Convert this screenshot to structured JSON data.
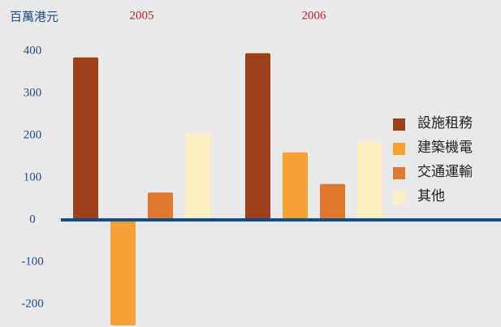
{
  "chart_data": {
    "type": "bar",
    "y_label": "百萬港元",
    "categories": [
      "2005",
      "2006"
    ],
    "series": [
      {
        "name": "設施租務",
        "color": "#9c4019",
        "values": [
          385,
          395
        ]
      },
      {
        "name": "建築機電",
        "color": "#f7a034",
        "values": [
          -250,
          160
        ]
      },
      {
        "name": "交通運輸",
        "color": "#e07830",
        "values": [
          65,
          85
        ]
      },
      {
        "name": "其他",
        "color": "#fdefc0",
        "values": [
          205,
          185
        ]
      }
    ],
    "ylim": [
      -250,
      420
    ],
    "yticks": [
      400,
      300,
      200,
      100,
      0,
      -100,
      -200
    ],
    "baseline_color": "#0d4f8a",
    "category_label_color": "#c0202a"
  }
}
